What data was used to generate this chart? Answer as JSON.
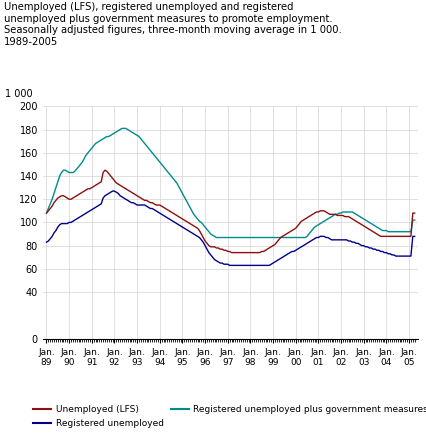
{
  "title": "Unemployed (LFS), registered unemployed and registered\nunemployed plus government measures to promote employment.\nSeasonally adjusted figures, three-month moving average in 1 000.\n1989-2005",
  "ylabel": "1 000",
  "ylim": [
    0,
    200
  ],
  "yticks": [
    0,
    40,
    60,
    80,
    100,
    120,
    140,
    160,
    180,
    200
  ],
  "xtick_labels": [
    "Jan.\n89",
    "Jan.\n90",
    "Jan.\n91",
    "Jan.\n92",
    "Jan.\n93",
    "Jan.\n94",
    "Jan.\n95",
    "Jan.\n96",
    "Jan.\n97",
    "Jan.\n98",
    "Jan.\n99",
    "Jan.\n00",
    "Jan.\n01",
    "Jan.\n02",
    "Jan.\n03",
    "Jan.\n04",
    "Jan.\n05"
  ],
  "line_lfs_color": "#8B1010",
  "line_reg_color": "#00008B",
  "line_gov_color": "#008B8B",
  "legend": [
    {
      "label": "Unemployed (LFS)",
      "color": "#8B1010"
    },
    {
      "label": "Registered unemployed",
      "color": "#00008B"
    },
    {
      "label": "Registered unemployed plus government measures",
      "color": "#008B8B"
    }
  ],
  "lfs_data": [
    108,
    110,
    112,
    114,
    117,
    119,
    121,
    122,
    123,
    123,
    122,
    121,
    120,
    120,
    121,
    122,
    123,
    124,
    125,
    126,
    127,
    128,
    129,
    129,
    130,
    131,
    132,
    133,
    134,
    135,
    143,
    145,
    144,
    142,
    140,
    138,
    136,
    134,
    133,
    132,
    131,
    130,
    129,
    128,
    127,
    126,
    125,
    124,
    123,
    122,
    121,
    120,
    119,
    119,
    118,
    117,
    117,
    116,
    115,
    115,
    115,
    114,
    113,
    112,
    111,
    110,
    109,
    108,
    107,
    106,
    105,
    104,
    103,
    102,
    101,
    100,
    99,
    98,
    97,
    96,
    95,
    93,
    90,
    87,
    84,
    82,
    80,
    79,
    79,
    79,
    78,
    78,
    77,
    77,
    76,
    76,
    75,
    75,
    74,
    74,
    74,
    74,
    74,
    74,
    74,
    74,
    74,
    74,
    74,
    74,
    74,
    74,
    74,
    74,
    75,
    75,
    76,
    77,
    78,
    79,
    80,
    81,
    83,
    85,
    87,
    88,
    89,
    90,
    91,
    92,
    93,
    94,
    95,
    97,
    99,
    101,
    102,
    103,
    104,
    105,
    106,
    107,
    108,
    109,
    109,
    110,
    110,
    110,
    109,
    108,
    107,
    107,
    107,
    107,
    106,
    106,
    106,
    106,
    105,
    105,
    105,
    104,
    103,
    102,
    101,
    100,
    99,
    98,
    97,
    96,
    95,
    94,
    93,
    92,
    91,
    90,
    89,
    88,
    88,
    88,
    88,
    88,
    88,
    88,
    88,
    88,
    88,
    88,
    88,
    88,
    88,
    88,
    88,
    88,
    108,
    108
  ],
  "reg_data": [
    83,
    84,
    86,
    88,
    91,
    93,
    96,
    98,
    99,
    99,
    99,
    99,
    100,
    100,
    101,
    102,
    103,
    104,
    105,
    106,
    107,
    108,
    109,
    110,
    111,
    112,
    113,
    114,
    115,
    116,
    121,
    123,
    124,
    125,
    126,
    127,
    127,
    126,
    125,
    123,
    122,
    121,
    120,
    119,
    118,
    117,
    117,
    116,
    115,
    115,
    115,
    115,
    115,
    114,
    113,
    112,
    112,
    111,
    110,
    109,
    108,
    107,
    106,
    105,
    104,
    103,
    102,
    101,
    100,
    99,
    98,
    97,
    96,
    95,
    94,
    93,
    92,
    91,
    90,
    89,
    88,
    87,
    85,
    83,
    80,
    77,
    74,
    72,
    70,
    68,
    67,
    66,
    65,
    65,
    64,
    64,
    64,
    63,
    63,
    63,
    63,
    63,
    63,
    63,
    63,
    63,
    63,
    63,
    63,
    63,
    63,
    63,
    63,
    63,
    63,
    63,
    63,
    63,
    63,
    64,
    65,
    66,
    67,
    68,
    69,
    70,
    71,
    72,
    73,
    74,
    75,
    75,
    76,
    77,
    78,
    79,
    80,
    81,
    82,
    83,
    84,
    85,
    86,
    87,
    87,
    88,
    88,
    88,
    87,
    87,
    86,
    85,
    85,
    85,
    85,
    85,
    85,
    85,
    85,
    85,
    84,
    84,
    83,
    83,
    82,
    82,
    81,
    80,
    80,
    79,
    79,
    78,
    78,
    77,
    77,
    76,
    76,
    75,
    75,
    74,
    74,
    73,
    73,
    72,
    72,
    71,
    71,
    71,
    71,
    71,
    71,
    71,
    71,
    71,
    88,
    88
  ],
  "gov_data": [
    108,
    112,
    116,
    120,
    125,
    130,
    135,
    140,
    143,
    145,
    145,
    144,
    143,
    143,
    143,
    144,
    146,
    148,
    150,
    152,
    155,
    158,
    160,
    162,
    164,
    166,
    168,
    169,
    170,
    171,
    172,
    173,
    174,
    174,
    175,
    176,
    177,
    178,
    179,
    180,
    181,
    181,
    181,
    180,
    179,
    178,
    177,
    176,
    175,
    174,
    172,
    170,
    168,
    166,
    164,
    162,
    160,
    158,
    156,
    154,
    152,
    150,
    148,
    146,
    144,
    142,
    140,
    138,
    136,
    134,
    131,
    128,
    125,
    122,
    119,
    116,
    113,
    110,
    107,
    105,
    103,
    101,
    100,
    98,
    96,
    94,
    92,
    90,
    89,
    88,
    87,
    87,
    87,
    87,
    87,
    87,
    87,
    87,
    87,
    87,
    87,
    87,
    87,
    87,
    87,
    87,
    87,
    87,
    87,
    87,
    87,
    87,
    87,
    87,
    87,
    87,
    87,
    87,
    87,
    87,
    87,
    87,
    87,
    87,
    87,
    87,
    87,
    87,
    87,
    87,
    87,
    87,
    87,
    87,
    87,
    87,
    87,
    87,
    88,
    90,
    92,
    94,
    96,
    97,
    98,
    99,
    100,
    101,
    102,
    103,
    104,
    105,
    106,
    107,
    107,
    108,
    108,
    109,
    109,
    109,
    109,
    109,
    109,
    108,
    107,
    106,
    105,
    104,
    103,
    102,
    101,
    100,
    99,
    98,
    97,
    96,
    95,
    94,
    93,
    93,
    93,
    92,
    92,
    92,
    92,
    92,
    92,
    92,
    92,
    92,
    92,
    92,
    92,
    92,
    102,
    102
  ]
}
